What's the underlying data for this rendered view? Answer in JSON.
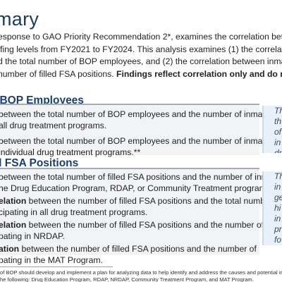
{
  "title": "mary",
  "intro": {
    "line1": "esponse to GAO Priority Recommendation 2*, examines the correlation between inm",
    "line2": "ffing levels from FY2021 to FY2024. This analysis examines (1) the correlation betwe",
    "line3": "d the total number of BOP employees, and (2) the correlation between inmate parti",
    "line4_plain": " number of filled FSA positions. ",
    "line4_bold": "Findings reflect correlation only and do not impl"
  },
  "sections": [
    {
      "title": "f BOP Employees",
      "findings": [
        {
          "line1_bold": "",
          "line1": "between the total number of BOP employees and the number of inmates",
          "line2": "all drug treatment programs."
        },
        {
          "line1_bold": "",
          "line1": "between the total number of BOP employees and the number of inmates",
          "line2": "individual drug treatment programs.**"
        }
      ],
      "callout": [
        "Th",
        "th",
        "of",
        "in",
        "dr"
      ]
    },
    {
      "title": "d FSA Positions",
      "findings": [
        {
          "line1_bold": "",
          "line1": "between the total number of filled FSA positions and the number of inmates",
          "line2": "he Drug Education Program, RDAP, or Community Treatment programs."
        },
        {
          "line1_bold": "elation",
          "line1": " between the number of filled FSA positions and the total number",
          "line2": "cipating in all drug treatment programs."
        },
        {
          "line1_bold": "elation",
          "line1": " between the number of filled FSA positions and the number of inmates",
          "line2": "pating in NRDAP."
        },
        {
          "line1_bold": "ation",
          "line1": " between the number of filled FSA positions and the number of",
          "line2": "pating in the MAT Program."
        }
      ],
      "callout": [
        "Th",
        "in",
        "ge",
        "hi",
        "in",
        "pr",
        "fo"
      ]
    }
  ],
  "footnote": {
    "line1": "of BOP should develop and implement a plan for analyzing data to help identify and address the causes and potential impacts of",
    "line2": "he following: Drug Education Program, RDAP, NRDAP, Community Treatment Program, and MAT Program."
  }
}
